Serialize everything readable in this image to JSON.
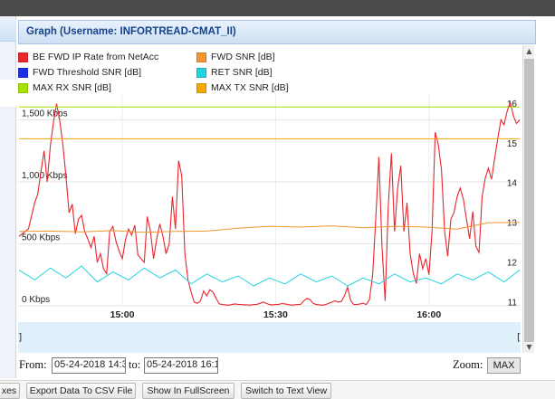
{
  "panel": {
    "title": "Graph (Username: INFORTREAD-CMAT_II)"
  },
  "legend": [
    {
      "label": "BE FWD IP Rate from NetAcc",
      "color": "#e8262d"
    },
    {
      "label": "FWD SNR [dB]",
      "color": "#f39530"
    },
    {
      "label": "FWD Threshold SNR [dB]",
      "color": "#1d2fe6"
    },
    {
      "label": "RET SNR [dB]",
      "color": "#22d3e0"
    },
    {
      "label": "MAX RX SNR [dB]",
      "color": "#a8e000"
    },
    {
      "label": "MAX TX SNR [dB]",
      "color": "#f5a800"
    }
  ],
  "chart_data": {
    "type": "line",
    "x_ticks": [
      "15:00",
      "15:30",
      "16:00"
    ],
    "y_left_ticks": [
      "1,500 Kbps",
      "1,000 Kbps",
      "500 Kbps",
      "0 Kbps"
    ],
    "y_left_range": [
      0,
      1700
    ],
    "y_right_ticks": [
      "16",
      "15",
      "14",
      "13",
      "12",
      "11"
    ],
    "y_right_range": [
      10.9,
      16.2
    ],
    "series": [
      {
        "name": "BE FWD IP Rate from NetAcc",
        "axis": "left",
        "color": "#e8262d",
        "points": [
          [
            0,
            560
          ],
          [
            3,
            620
          ],
          [
            5,
            830
          ],
          [
            6,
            900
          ],
          [
            7,
            1080
          ],
          [
            8,
            1250
          ],
          [
            9,
            1000
          ],
          [
            10,
            1290
          ],
          [
            11,
            1480
          ],
          [
            12,
            1630
          ],
          [
            13,
            1500
          ],
          [
            14,
            1300
          ],
          [
            15,
            1050
          ],
          [
            16,
            750
          ],
          [
            17,
            820
          ],
          [
            18,
            580
          ],
          [
            19,
            700
          ],
          [
            20,
            730
          ],
          [
            21,
            600
          ],
          [
            22,
            540
          ],
          [
            23,
            470
          ],
          [
            24,
            560
          ],
          [
            25,
            350
          ],
          [
            26,
            420
          ],
          [
            27,
            300
          ],
          [
            28,
            260
          ],
          [
            29,
            600
          ],
          [
            30,
            640
          ],
          [
            31,
            520
          ],
          [
            32,
            440
          ],
          [
            33,
            380
          ],
          [
            34,
            530
          ],
          [
            35,
            620
          ],
          [
            36,
            570
          ],
          [
            37,
            650
          ],
          [
            38,
            410
          ],
          [
            39,
            380
          ],
          [
            40,
            350
          ],
          [
            41,
            720
          ],
          [
            42,
            600
          ],
          [
            43,
            380
          ],
          [
            44,
            540
          ],
          [
            45,
            660
          ],
          [
            46,
            560
          ],
          [
            47,
            420
          ],
          [
            48,
            500
          ],
          [
            49,
            880
          ],
          [
            50,
            620
          ],
          [
            51,
            1170
          ],
          [
            52,
            1050
          ],
          [
            53,
            420
          ],
          [
            54,
            210
          ],
          [
            55,
            110
          ],
          [
            56,
            30
          ],
          [
            57,
            20
          ],
          [
            58,
            40
          ],
          [
            59,
            120
          ],
          [
            60,
            80
          ],
          [
            61,
            130
          ],
          [
            62,
            110
          ],
          [
            63,
            60
          ],
          [
            64,
            15
          ],
          [
            65,
            10
          ],
          [
            66,
            8
          ],
          [
            67,
            5
          ],
          [
            68,
            10
          ],
          [
            69,
            15
          ],
          [
            70,
            12
          ],
          [
            71,
            10
          ],
          [
            72,
            8
          ],
          [
            73,
            8
          ],
          [
            74,
            6
          ],
          [
            75,
            10
          ],
          [
            76,
            12
          ],
          [
            77,
            20
          ],
          [
            78,
            30
          ],
          [
            79,
            20
          ],
          [
            80,
            10
          ],
          [
            81,
            8
          ],
          [
            82,
            10
          ],
          [
            83,
            12
          ],
          [
            84,
            18
          ],
          [
            85,
            15
          ],
          [
            86,
            10
          ],
          [
            87,
            6
          ],
          [
            88,
            8
          ],
          [
            89,
            10
          ],
          [
            90,
            12
          ],
          [
            91,
            40
          ],
          [
            92,
            60
          ],
          [
            93,
            50
          ],
          [
            94,
            20
          ],
          [
            95,
            10
          ],
          [
            96,
            8
          ],
          [
            97,
            5
          ],
          [
            98,
            10
          ],
          [
            99,
            20
          ],
          [
            100,
            30
          ],
          [
            101,
            40
          ],
          [
            102,
            30
          ],
          [
            103,
            35
          ],
          [
            104,
            80
          ],
          [
            105,
            150
          ],
          [
            106,
            40
          ],
          [
            107,
            10
          ],
          [
            108,
            10
          ],
          [
            109,
            15
          ],
          [
            110,
            20
          ],
          [
            111,
            10
          ],
          [
            112,
            50
          ],
          [
            113,
            250
          ],
          [
            114,
            700
          ],
          [
            115,
            1200
          ],
          [
            116,
            480
          ],
          [
            117,
            40
          ],
          [
            118,
            800
          ],
          [
            119,
            1230
          ],
          [
            120,
            600
          ],
          [
            121,
            950
          ],
          [
            122,
            1130
          ],
          [
            123,
            600
          ],
          [
            124,
            830
          ],
          [
            125,
            420
          ],
          [
            126,
            260
          ],
          [
            127,
            180
          ],
          [
            128,
            420
          ],
          [
            129,
            300
          ],
          [
            130,
            380
          ],
          [
            131,
            250
          ],
          [
            132,
            600
          ],
          [
            133,
            1400
          ],
          [
            134,
            1300
          ],
          [
            135,
            1100
          ],
          [
            136,
            600
          ],
          [
            137,
            400
          ],
          [
            138,
            700
          ],
          [
            139,
            750
          ],
          [
            140,
            880
          ],
          [
            141,
            950
          ],
          [
            142,
            860
          ],
          [
            143,
            700
          ],
          [
            144,
            540
          ],
          [
            145,
            760
          ],
          [
            146,
            480
          ],
          [
            147,
            430
          ],
          [
            148,
            880
          ],
          [
            149,
            1030
          ],
          [
            150,
            1110
          ],
          [
            151,
            1020
          ],
          [
            152,
            1190
          ],
          [
            153,
            1350
          ],
          [
            154,
            1500
          ],
          [
            155,
            1460
          ],
          [
            156,
            1570
          ],
          [
            157,
            1640
          ],
          [
            158,
            1530
          ],
          [
            159,
            1470
          ],
          [
            160,
            1500
          ]
        ]
      },
      {
        "name": "FWD SNR [dB]",
        "axis": "right",
        "color": "#f39530",
        "points": [
          [
            0,
            12.77
          ],
          [
            10,
            12.78
          ],
          [
            20,
            12.76
          ],
          [
            30,
            12.79
          ],
          [
            40,
            12.75
          ],
          [
            50,
            12.77
          ],
          [
            60,
            12.78
          ],
          [
            70,
            12.85
          ],
          [
            80,
            12.9
          ],
          [
            90,
            12.88
          ],
          [
            100,
            12.91
          ],
          [
            110,
            12.86
          ],
          [
            120,
            12.9
          ],
          [
            130,
            12.88
          ],
          [
            140,
            12.83
          ],
          [
            150,
            12.99
          ],
          [
            160,
            13.0
          ]
        ]
      },
      {
        "name": "RET SNR [dB]",
        "axis": "right",
        "color": "#22d3e0",
        "points": [
          [
            0,
            11.8
          ],
          [
            5,
            11.55
          ],
          [
            10,
            11.85
          ],
          [
            15,
            11.6
          ],
          [
            20,
            11.9
          ],
          [
            25,
            11.5
          ],
          [
            30,
            11.75
          ],
          [
            35,
            11.55
          ],
          [
            40,
            11.85
          ],
          [
            45,
            11.6
          ],
          [
            50,
            11.8
          ],
          [
            55,
            11.45
          ],
          [
            60,
            11.7
          ],
          [
            65,
            11.5
          ],
          [
            70,
            11.65
          ],
          [
            75,
            11.4
          ],
          [
            80,
            11.6
          ],
          [
            85,
            11.45
          ],
          [
            90,
            11.7
          ],
          [
            95,
            11.5
          ],
          [
            100,
            11.65
          ],
          [
            105,
            11.4
          ],
          [
            110,
            11.6
          ],
          [
            115,
            11.45
          ],
          [
            120,
            11.7
          ],
          [
            125,
            11.5
          ],
          [
            130,
            11.6
          ],
          [
            135,
            11.45
          ],
          [
            140,
            11.7
          ],
          [
            145,
            11.55
          ],
          [
            150,
            11.75
          ],
          [
            155,
            11.5
          ],
          [
            160,
            11.8
          ]
        ]
      },
      {
        "name": "MAX RX SNR [dB]",
        "axis": "right",
        "color": "#a8e000",
        "points": [
          [
            0,
            15.9
          ],
          [
            160,
            15.9
          ]
        ]
      },
      {
        "name": "MAX TX SNR [dB]",
        "axis": "right",
        "color": "#f5a800",
        "points": [
          [
            0,
            15.1
          ],
          [
            160,
            15.1
          ]
        ]
      }
    ]
  },
  "navigator": {
    "ticks": [
      "15:00",
      "15:30",
      "16:00"
    ]
  },
  "range": {
    "from_label": "From:",
    "from_value": "05-24-2018 14:3",
    "to_label": "to:",
    "to_value": "05-24-2018 16:1",
    "zoom_label": "Zoom:",
    "zoom_value": "MAX"
  },
  "buttons": {
    "axes": "xes",
    "export": "Export Data To CSV File",
    "fullscreen": "Show In FullScreen",
    "textview": "Switch to Text View"
  }
}
